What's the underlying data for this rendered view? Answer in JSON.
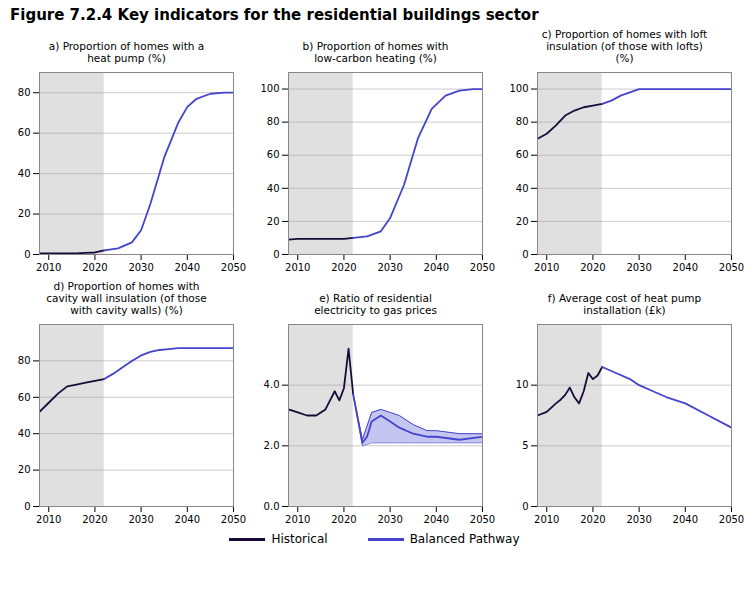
{
  "title": "Figure 7.2.4 Key indicators for the residential buildings sector",
  "legend": "bottom",
  "chart_data": [
    {
      "type": "line",
      "title": "a) Proportion of homes with a\nheat pump (%)",
      "xlim": [
        2008,
        2050
      ],
      "xticks": [
        2010,
        2020,
        2030,
        2040,
        2050
      ],
      "ylim": [
        0,
        90
      ],
      "yticks": [
        0,
        20,
        40,
        60,
        80
      ],
      "grid": true,
      "span": {
        "x": [
          2008,
          2022
        ],
        "color": "#e0e0e0"
      },
      "series": [
        {
          "name": "Historical",
          "color": "#1a0a3a",
          "x": [
            2008,
            2010,
            2012,
            2014,
            2016,
            2018,
            2020,
            2022
          ],
          "values": [
            0.5,
            0.5,
            0.5,
            0.5,
            0.5,
            0.8,
            1.0,
            2.0
          ]
        },
        {
          "name": "Balanced Pathway",
          "color": "#4444cc",
          "x": [
            2022,
            2025,
            2028,
            2030,
            2032,
            2035,
            2038,
            2040,
            2042,
            2045,
            2048,
            2050
          ],
          "values": [
            2.0,
            3.0,
            6.0,
            12.0,
            25.0,
            48.0,
            65.0,
            73.0,
            77.0,
            79.5,
            80.0,
            80.0
          ]
        }
      ]
    },
    {
      "type": "line",
      "title": "b) Proportion of homes with\nlow-carbon heating (%)",
      "xlim": [
        2008,
        2050
      ],
      "xticks": [
        2010,
        2020,
        2030,
        2040,
        2050
      ],
      "ylim": [
        0,
        110
      ],
      "yticks": [
        0,
        20,
        40,
        60,
        80,
        100
      ],
      "grid": true,
      "span": {
        "x": [
          2008,
          2022
        ],
        "color": "#e0e0e0"
      },
      "series": [
        {
          "name": "Historical",
          "color": "#1a0a3a",
          "x": [
            2008,
            2010,
            2012,
            2014,
            2016,
            2018,
            2020,
            2022
          ],
          "values": [
            9.0,
            9.5,
            9.5,
            9.5,
            9.5,
            9.5,
            9.5,
            10.0
          ]
        },
        {
          "name": "Balanced Pathway",
          "color": "#4444cc",
          "x": [
            2022,
            2025,
            2028,
            2030,
            2033,
            2036,
            2039,
            2042,
            2045,
            2048,
            2050
          ],
          "values": [
            10.0,
            11.0,
            14.0,
            22.0,
            42.0,
            70.0,
            88.0,
            96.0,
            99.0,
            100.0,
            100.0
          ]
        }
      ]
    },
    {
      "type": "line",
      "title": "c) Proportion of homes with loft\ninsulation (of those with lofts)\n(%)",
      "xlim": [
        2008,
        2050
      ],
      "xticks": [
        2010,
        2020,
        2030,
        2040,
        2050
      ],
      "ylim": [
        0,
        110
      ],
      "yticks": [
        0,
        20,
        40,
        60,
        80,
        100
      ],
      "grid": true,
      "span": {
        "x": [
          2008,
          2022
        ],
        "color": "#e0e0e0"
      },
      "series": [
        {
          "name": "Historical",
          "color": "#1a0a3a",
          "x": [
            2008,
            2010,
            2012,
            2014,
            2016,
            2018,
            2020,
            2022
          ],
          "values": [
            70.0,
            73.0,
            78.0,
            84.0,
            87.0,
            89.0,
            90.0,
            91.0
          ]
        },
        {
          "name": "Balanced Pathway",
          "color": "#4444cc",
          "x": [
            2022,
            2024,
            2026,
            2028,
            2030,
            2035,
            2040,
            2045,
            2050
          ],
          "values": [
            91.0,
            93.0,
            96.0,
            98.0,
            100.0,
            100.0,
            100.0,
            100.0,
            100.0
          ]
        }
      ]
    },
    {
      "type": "line",
      "title": "d) Proportion of homes with\ncavity wall insulation (of those\nwith cavity walls) (%)",
      "xlim": [
        2008,
        2050
      ],
      "xticks": [
        2010,
        2020,
        2030,
        2040,
        2050
      ],
      "ylim": [
        0,
        100
      ],
      "yticks": [
        0,
        20,
        40,
        60,
        80
      ],
      "grid": true,
      "span": {
        "x": [
          2008,
          2022
        ],
        "color": "#e0e0e0"
      },
      "series": [
        {
          "name": "Historical",
          "color": "#1a0a3a",
          "x": [
            2008,
            2010,
            2012,
            2014,
            2016,
            2018,
            2020,
            2022
          ],
          "values": [
            52.0,
            57.0,
            62.0,
            66.0,
            67.0,
            68.0,
            69.0,
            70.0
          ]
        },
        {
          "name": "Balanced Pathway",
          "color": "#4444cc",
          "x": [
            2022,
            2024,
            2026,
            2028,
            2030,
            2032,
            2034,
            2036,
            2038,
            2040,
            2045,
            2050
          ],
          "values": [
            70.0,
            73.0,
            76.5,
            80.0,
            83.0,
            85.0,
            86.0,
            86.5,
            87.0,
            87.0,
            87.0,
            87.0
          ]
        }
      ]
    },
    {
      "type": "line",
      "title": "e) Ratio of residential\nelectricity to gas prices",
      "xlim": [
        2008,
        2050
      ],
      "xticks": [
        2010,
        2020,
        2030,
        2040,
        2050
      ],
      "ylim": [
        0,
        6
      ],
      "yticks": [
        0,
        2,
        4
      ],
      "grid": true,
      "span": {
        "x": [
          2008,
          2022
        ],
        "color": "#e0e0e0"
      },
      "series": [
        {
          "name": "Historical",
          "color": "#1a0a3a",
          "x": [
            2008,
            2010,
            2012,
            2014,
            2016,
            2017,
            2018,
            2019,
            2020,
            2021,
            2022
          ],
          "values": [
            3.2,
            3.1,
            3.0,
            3.0,
            3.2,
            3.5,
            3.8,
            3.5,
            3.9,
            5.2,
            3.7
          ]
        },
        {
          "name": "Balanced Pathway",
          "color": "#4444cc",
          "x": [
            2022,
            2024,
            2025,
            2026,
            2028,
            2030,
            2032,
            2035,
            2038,
            2040,
            2045,
            2050
          ],
          "values": [
            3.7,
            2.1,
            2.3,
            2.8,
            3.0,
            2.8,
            2.6,
            2.4,
            2.3,
            2.3,
            2.2,
            2.3
          ]
        }
      ],
      "band": {
        "color": "#bbbbee",
        "x": [
          2022,
          2024,
          2026,
          2028,
          2030,
          2032,
          2035,
          2038,
          2040,
          2045,
          2050
        ],
        "upper": [
          3.7,
          2.2,
          3.1,
          3.2,
          3.1,
          3.0,
          2.7,
          2.5,
          2.5,
          2.4,
          2.4
        ],
        "lower": [
          3.7,
          2.0,
          2.1,
          2.1,
          2.1,
          2.1,
          2.1,
          2.1,
          2.1,
          2.1,
          2.1
        ]
      }
    },
    {
      "type": "line",
      "title": "f) Average cost of heat pump\ninstallation (£k)",
      "xlim": [
        2008,
        2050
      ],
      "xticks": [
        2010,
        2020,
        2030,
        2040,
        2050
      ],
      "ylim": [
        0,
        15
      ],
      "yticks": [
        0,
        5,
        10
      ],
      "grid": true,
      "span": {
        "x": [
          2008,
          2022
        ],
        "color": "#e0e0e0"
      },
      "series": [
        {
          "name": "Historical",
          "color": "#1a0a3a",
          "x": [
            2008,
            2010,
            2012,
            2013,
            2014,
            2015,
            2016,
            2017,
            2018,
            2019,
            2020,
            2021,
            2022
          ],
          "values": [
            7.5,
            7.8,
            8.5,
            8.8,
            9.2,
            9.8,
            9.0,
            8.5,
            9.5,
            11.0,
            10.5,
            10.8,
            11.5
          ]
        },
        {
          "name": "Balanced Pathway",
          "color": "#4444cc",
          "x": [
            2022,
            2025,
            2028,
            2030,
            2033,
            2036,
            2040,
            2045,
            2050
          ],
          "values": [
            11.5,
            11.0,
            10.5,
            10.0,
            9.5,
            9.0,
            8.5,
            7.5,
            6.5
          ]
        }
      ]
    }
  ]
}
